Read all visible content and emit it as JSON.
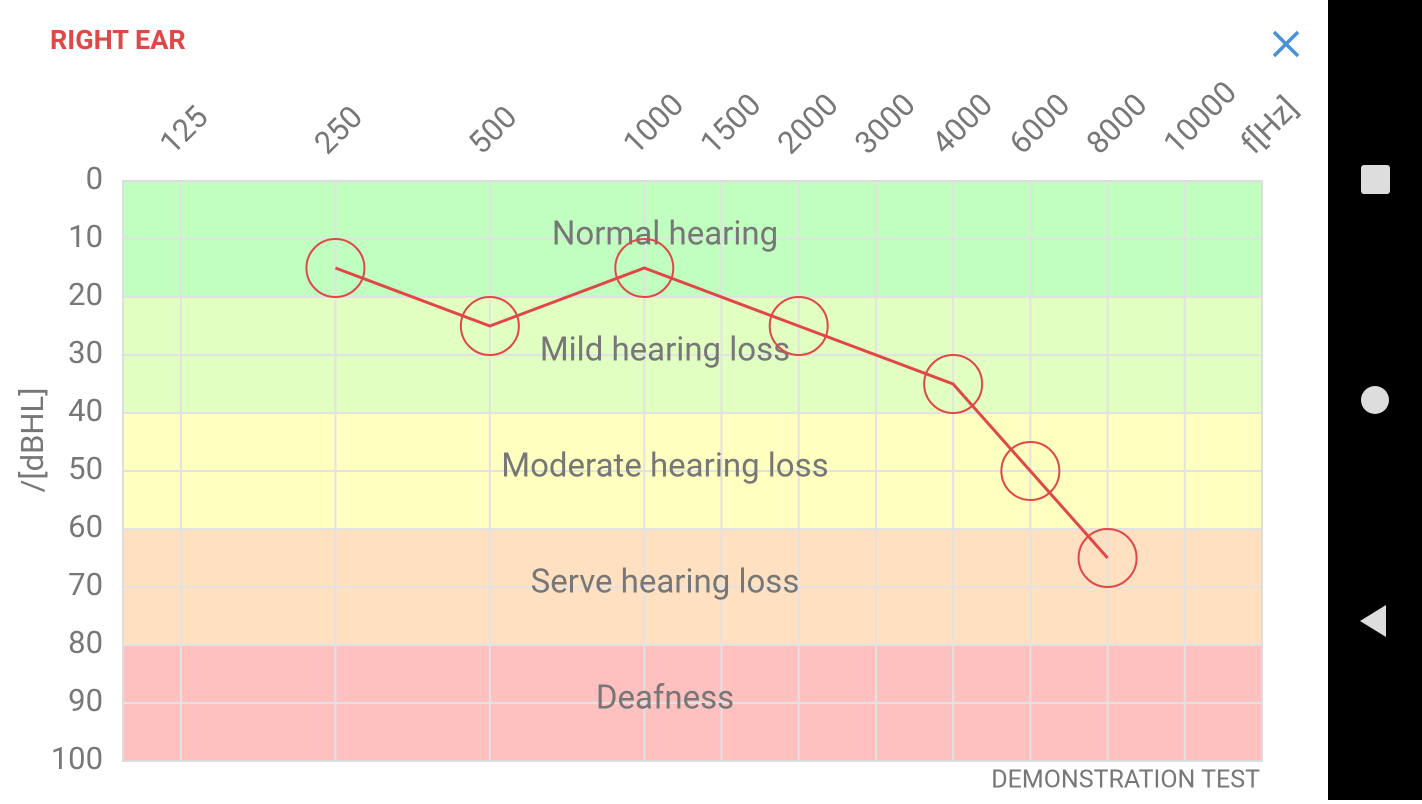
{
  "header": {
    "title": "RIGHT EAR"
  },
  "footer": {
    "text": "DEMONSTRATION TEST"
  },
  "chart_data": {
    "type": "line",
    "x_label": "f[Hz]",
    "y_label": "/[dBHL]",
    "xticks": [
      125,
      250,
      500,
      1000,
      1500,
      2000,
      3000,
      4000,
      6000,
      8000,
      10000
    ],
    "ylim": [
      0,
      100
    ],
    "yticks": [
      0,
      10,
      20,
      30,
      40,
      50,
      60,
      70,
      80,
      90,
      100
    ],
    "y_inverted": true,
    "grid": true,
    "bands": [
      {
        "label": "Normal hearing",
        "from": 0,
        "to": 20,
        "color": "#c0ffc0"
      },
      {
        "label": "Mild hearing loss",
        "from": 20,
        "to": 40,
        "color": "#e0ffc0"
      },
      {
        "label": "Moderate hearing loss",
        "from": 40,
        "to": 60,
        "color": "#ffffc0"
      },
      {
        "label": "Serve hearing loss",
        "from": 60,
        "to": 80,
        "color": "#ffe0c0"
      },
      {
        "label": "Deafness",
        "from": 80,
        "to": 100,
        "color": "#ffc0c0"
      }
    ],
    "x": [
      250,
      500,
      1000,
      2000,
      4000,
      6000,
      8000
    ],
    "values": [
      15,
      25,
      15,
      25,
      35,
      50,
      65
    ],
    "color": "#e04848"
  }
}
